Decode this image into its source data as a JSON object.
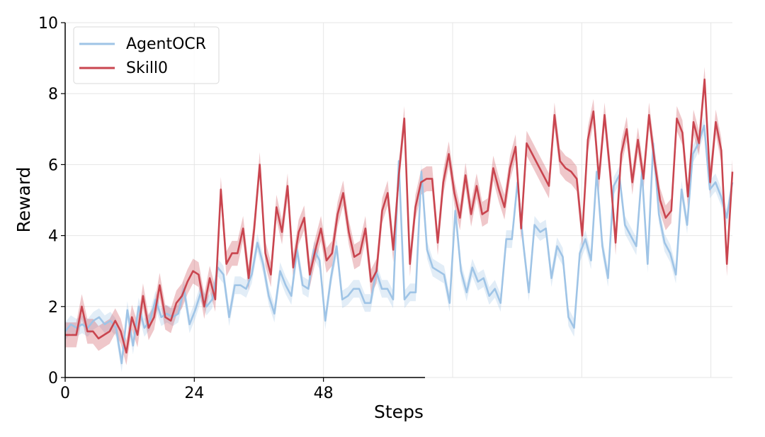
{
  "chart_data": {
    "type": "line",
    "xlabel": "Steps",
    "ylabel": "Reward",
    "xlim": [
      0,
      124
    ],
    "ylim": [
      0,
      10
    ],
    "xticks": [
      0,
      24,
      48
    ],
    "xtick_labels": [
      "0",
      "24",
      "48"
    ],
    "yticks": [
      0,
      2,
      4,
      6,
      8,
      10
    ],
    "ytick_labels": [
      "0",
      "2",
      "4",
      "6",
      "8",
      "10"
    ],
    "grid": true,
    "legend_position": "top-left",
    "series": [
      {
        "name": "AgentOCR",
        "color": "#9fc4e6",
        "band": 0.25,
        "values": [
          1.3,
          1.5,
          1.4,
          1.5,
          1.4,
          1.6,
          1.7,
          1.5,
          1.6,
          1.4,
          0.4,
          1.9,
          0.9,
          2.0,
          1.4,
          1.6,
          2.2,
          1.7,
          1.8,
          1.7,
          1.8,
          2.5,
          1.5,
          1.9,
          2.4,
          2.0,
          2.2,
          3.1,
          2.9,
          1.7,
          2.6,
          2.6,
          2.5,
          2.9,
          3.8,
          3.2,
          2.3,
          1.8,
          3.0,
          2.6,
          2.3,
          3.6,
          2.6,
          2.5,
          3.6,
          3.3,
          1.6,
          2.8,
          3.7,
          2.2,
          2.3,
          2.5,
          2.5,
          2.1,
          2.1,
          3.0,
          2.5,
          2.5,
          2.2,
          6.1,
          2.2,
          2.4,
          2.4,
          5.8,
          3.6,
          3.1,
          3.0,
          2.9,
          2.1,
          4.7,
          3.0,
          2.4,
          3.1,
          2.7,
          2.8,
          2.3,
          2.5,
          2.1,
          3.9,
          3.9,
          5.5,
          3.8,
          2.4,
          4.3,
          4.1,
          4.2,
          2.8,
          3.7,
          3.4,
          1.7,
          1.4,
          3.5,
          3.9,
          3.3,
          5.8,
          3.7,
          2.8,
          5.4,
          5.7,
          4.3,
          4.0,
          3.7,
          5.8,
          3.2,
          6.6,
          4.6,
          3.8,
          3.5,
          2.9,
          5.3,
          4.3,
          6.3,
          6.6,
          7.1,
          5.3,
          5.5,
          5.1,
          4.5,
          5.5
        ]
      },
      {
        "name": "Skill0",
        "color": "#c9454f",
        "band": 0.35,
        "values": [
          1.2,
          1.2,
          1.2,
          2.0,
          1.3,
          1.3,
          1.1,
          1.2,
          1.3,
          1.6,
          1.3,
          0.7,
          1.7,
          1.2,
          2.3,
          1.4,
          1.7,
          2.6,
          1.7,
          1.6,
          2.1,
          2.3,
          2.7,
          3.0,
          2.9,
          2.0,
          2.8,
          2.2,
          5.3,
          3.2,
          3.5,
          3.5,
          4.2,
          2.8,
          4.2,
          6.0,
          3.5,
          2.9,
          4.8,
          4.1,
          5.4,
          3.1,
          4.1,
          4.5,
          2.9,
          3.6,
          4.2,
          3.3,
          3.5,
          4.6,
          5.2,
          4.1,
          3.4,
          3.5,
          4.2,
          2.7,
          3.0,
          4.7,
          5.2,
          3.6,
          5.7,
          7.3,
          3.2,
          4.8,
          5.5,
          5.6,
          5.6,
          3.8,
          5.5,
          6.3,
          5.2,
          4.5,
          5.7,
          4.6,
          5.4,
          4.6,
          4.7,
          5.9,
          5.3,
          4.8,
          5.9,
          6.5,
          4.2,
          6.6,
          6.3,
          6.0,
          5.7,
          5.4,
          7.4,
          6.1,
          5.9,
          5.8,
          5.6,
          4.0,
          6.7,
          7.5,
          5.6,
          7.4,
          5.8,
          3.8,
          6.3,
          7.0,
          5.5,
          6.7,
          5.6,
          7.4,
          6.1,
          5.0,
          4.5,
          4.7,
          7.3,
          6.9,
          5.1,
          7.2,
          6.6,
          8.4,
          5.5,
          7.2,
          6.4,
          3.2,
          5.8
        ]
      }
    ]
  }
}
